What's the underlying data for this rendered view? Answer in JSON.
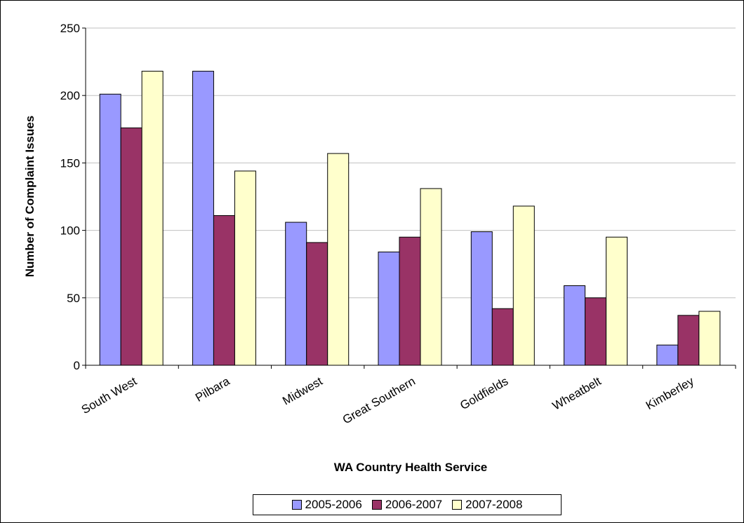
{
  "chart_data": {
    "type": "bar",
    "title": "",
    "xlabel": "WA Country Health Service",
    "ylabel": "Number of Complaint Issues",
    "ylim": [
      0,
      250
    ],
    "yticks": [
      0,
      50,
      100,
      150,
      200,
      250
    ],
    "grid": true,
    "legend_position": "bottom",
    "categories": [
      "South West",
      "Pilbara",
      "Midwest",
      "Great Southern",
      "Goldfields",
      "Wheatbelt",
      "Kimberley"
    ],
    "series": [
      {
        "name": "2005-2006",
        "color": "#9999FF",
        "values": [
          201,
          218,
          106,
          84,
          99,
          59,
          15
        ]
      },
      {
        "name": "2006-2007",
        "color": "#993366",
        "values": [
          176,
          111,
          91,
          95,
          42,
          50,
          37
        ]
      },
      {
        "name": "2007-2008",
        "color": "#FFFFCC",
        "values": [
          218,
          144,
          157,
          131,
          118,
          95,
          40
        ]
      }
    ]
  }
}
